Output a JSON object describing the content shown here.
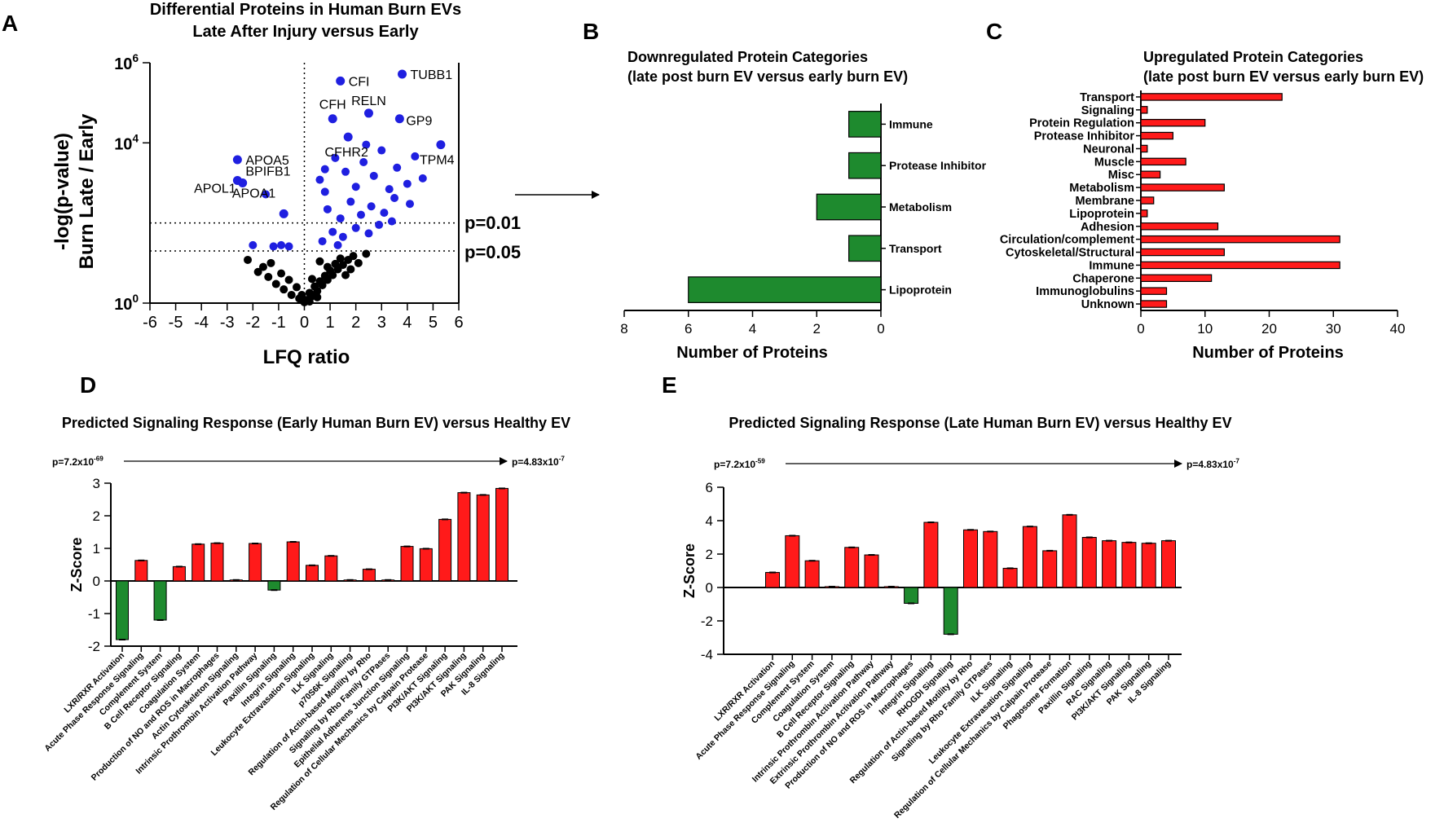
{
  "colors": {
    "up": "#ff1a1a",
    "down": "#1e8a2e",
    "sig": "#1f1fe0",
    "nonsig": "#000000",
    "axis": "#000000"
  },
  "panel_letters": [
    "A",
    "B",
    "C",
    "D",
    "E"
  ],
  "flow_arrow_name": "right-arrow-icon",
  "chart_data": [
    {
      "id": "A",
      "type": "scatter",
      "title_line1": "Differential Proteins in Human Burn EVs",
      "title_line2": "Late After Injury versus Early",
      "xlabel": "LFQ ratio",
      "ylabel_line1": "-log(p-value)",
      "ylabel_line2": "Burn Late / Early",
      "yscale": "log10",
      "xlim": [
        -6,
        6
      ],
      "ylim": [
        1,
        1000000
      ],
      "xticks": [
        "-6",
        "-5",
        "-4",
        "-3",
        "-2",
        "-1",
        "0",
        "1",
        "2",
        "3",
        "4",
        "5",
        "6"
      ],
      "yticks": [
        {
          "base": "10",
          "exp": "0",
          "value": 1
        },
        {
          "base": "10",
          "exp": "4",
          "value": 10000
        },
        {
          "base": "10",
          "exp": "6",
          "value": 1000000
        }
      ],
      "threshold_labels": [
        "p=0.01",
        "p=0.05"
      ],
      "threshold_values": [
        100,
        20
      ],
      "labeled_points": [
        {
          "label": "TUBB1",
          "x": 3.8,
          "y": 520000
        },
        {
          "label": "CFI",
          "x": 1.4,
          "y": 350000
        },
        {
          "label": "RELN",
          "x": 2.5,
          "y": 55000
        },
        {
          "label": "GP9",
          "x": 3.7,
          "y": 40000
        },
        {
          "label": "CFH",
          "x": 1.1,
          "y": 40000
        },
        {
          "label": "CFHR2",
          "x": 1.7,
          "y": 14000
        },
        {
          "label": "TPM4",
          "x": 5.3,
          "y": 9000
        },
        {
          "label": "APOA5",
          "x": -2.6,
          "y": 3800
        },
        {
          "label": "BPIFB1",
          "x": -2.6,
          "y": 1150
        },
        {
          "label": "APOL1",
          "x": -2.4,
          "y": 1000
        },
        {
          "label": "APOA1",
          "x": -0.8,
          "y": 170
        }
      ],
      "extra_sig_points": [
        {
          "x": -2.0,
          "y": 28
        },
        {
          "x": -1.2,
          "y": 26
        },
        {
          "x": -0.9,
          "y": 28
        },
        {
          "x": -0.6,
          "y": 26
        },
        {
          "x": -1.5,
          "y": 520
        },
        {
          "x": 0.6,
          "y": 1200
        },
        {
          "x": 0.8,
          "y": 2200
        },
        {
          "x": 1.2,
          "y": 4200
        },
        {
          "x": 1.6,
          "y": 1900
        },
        {
          "x": 2.0,
          "y": 800
        },
        {
          "x": 2.3,
          "y": 3300
        },
        {
          "x": 2.7,
          "y": 1500
        },
        {
          "x": 3.0,
          "y": 6500
        },
        {
          "x": 3.3,
          "y": 700
        },
        {
          "x": 3.6,
          "y": 2400
        },
        {
          "x": 4.0,
          "y": 950
        },
        {
          "x": 4.3,
          "y": 4600
        },
        {
          "x": 4.6,
          "y": 1300
        },
        {
          "x": 0.9,
          "y": 220
        },
        {
          "x": 1.4,
          "y": 130
        },
        {
          "x": 1.8,
          "y": 340
        },
        {
          "x": 2.2,
          "y": 160
        },
        {
          "x": 2.6,
          "y": 260
        },
        {
          "x": 3.1,
          "y": 180
        },
        {
          "x": 3.5,
          "y": 420
        },
        {
          "x": 1.1,
          "y": 60
        },
        {
          "x": 1.5,
          "y": 45
        },
        {
          "x": 2.0,
          "y": 75
        },
        {
          "x": 2.5,
          "y": 55
        },
        {
          "x": 2.9,
          "y": 90
        },
        {
          "x": 0.7,
          "y": 35
        },
        {
          "x": 1.3,
          "y": 28
        },
        {
          "x": 3.4,
          "y": 110
        },
        {
          "x": 4.1,
          "y": 300
        },
        {
          "x": 0.8,
          "y": 600
        },
        {
          "x": 2.4,
          "y": 9000
        }
      ],
      "nonsig_points": [
        {
          "x": -2.2,
          "y": 12
        },
        {
          "x": -1.8,
          "y": 6
        },
        {
          "x": -1.4,
          "y": 4.5
        },
        {
          "x": -1.1,
          "y": 3
        },
        {
          "x": -0.8,
          "y": 2.2
        },
        {
          "x": -0.5,
          "y": 1.6
        },
        {
          "x": -0.2,
          "y": 1.3
        },
        {
          "x": 0.1,
          "y": 1.2
        },
        {
          "x": 0.3,
          "y": 1.5
        },
        {
          "x": 0.5,
          "y": 2
        },
        {
          "x": 0.7,
          "y": 2.8
        },
        {
          "x": 0.9,
          "y": 3.8
        },
        {
          "x": 1.1,
          "y": 5
        },
        {
          "x": 1.3,
          "y": 7
        },
        {
          "x": 1.5,
          "y": 9
        },
        {
          "x": 1.7,
          "y": 12
        },
        {
          "x": 1.9,
          "y": 15
        },
        {
          "x": 0.2,
          "y": 1.8
        },
        {
          "x": 0.4,
          "y": 2.6
        },
        {
          "x": 0.6,
          "y": 3.5
        },
        {
          "x": 0.8,
          "y": 4.8
        },
        {
          "x": 1.0,
          "y": 6.5
        },
        {
          "x": 1.2,
          "y": 9.5
        },
        {
          "x": 1.4,
          "y": 13
        },
        {
          "x": -0.3,
          "y": 2.5
        },
        {
          "x": -0.6,
          "y": 3.8
        },
        {
          "x": -0.9,
          "y": 5.5
        },
        {
          "x": -1.6,
          "y": 8
        },
        {
          "x": 0.0,
          "y": 1.05
        },
        {
          "x": 0.2,
          "y": 1.1
        },
        {
          "x": -0.1,
          "y": 1.6
        },
        {
          "x": 0.5,
          "y": 1.4
        },
        {
          "x": 1.6,
          "y": 5
        },
        {
          "x": 2.1,
          "y": 10
        },
        {
          "x": 2.4,
          "y": 17
        },
        {
          "x": 0.3,
          "y": 4
        },
        {
          "x": 0.9,
          "y": 8
        },
        {
          "x": -1.3,
          "y": 10
        },
        {
          "x": 0.6,
          "y": 11
        },
        {
          "x": 1.8,
          "y": 7
        }
      ]
    },
    {
      "id": "B",
      "type": "bar",
      "orientation": "horizontal",
      "x_direction": "reversed",
      "title_line1": "Downregulated Protein Categories",
      "title_line2": "(late post burn EV versus early burn EV)",
      "xlabel": "Number of Proteins",
      "xlim": [
        0,
        8
      ],
      "xticks": [
        "0",
        "2",
        "4",
        "6",
        "8"
      ],
      "categories": [
        "Immune",
        "Protease Inhibitor",
        "Metabolism",
        "Transport",
        "Lipoprotein"
      ],
      "values": [
        1,
        1,
        2,
        1,
        6
      ]
    },
    {
      "id": "C",
      "type": "bar",
      "orientation": "horizontal",
      "title_line1": "Upregulated Protein Categories",
      "title_line2": "(late post burn EV versus early burn EV)",
      "xlabel": "Number of Proteins",
      "xlim": [
        0,
        40
      ],
      "xticks": [
        "0",
        "10",
        "20",
        "30",
        "40"
      ],
      "categories": [
        "Transport",
        "Signaling",
        "Protein Regulation",
        "Protease Inhibitor",
        "Neuronal",
        "Muscle",
        "Misc",
        "Metabolism",
        "Membrane",
        "Lipoprotein",
        "Adhesion",
        "Circulation/complement",
        "Cytoskeletal/Structural",
        "Immune",
        "Chaperone",
        "Immunoglobulins",
        "Unknown"
      ],
      "values": [
        22,
        1,
        10,
        5,
        1,
        7,
        3,
        13,
        2,
        1,
        12,
        31,
        13,
        31,
        11,
        4,
        4
      ]
    },
    {
      "id": "D",
      "type": "bar",
      "title": "Predicted Signaling Response (Early Human Burn EV) versus Healthy EV",
      "pval_left": {
        "base": "p=7.2x10",
        "exp": "-69"
      },
      "pval_right": {
        "base": "p=4.83x10",
        "exp": "-7"
      },
      "ylabel": "Z-Score",
      "ylim": [
        -2,
        3
      ],
      "yticks": [
        "-2",
        "-1",
        "0",
        "1",
        "2",
        "3"
      ],
      "categories": [
        "LXR/RXR Activation",
        "Acute Phase Response Signaling",
        "Complement System",
        "B Cell Receptor Signaling",
        "Coagulation System",
        "Production of NO and ROS in Macrophages",
        "Actin Cytoskeleton Signaling",
        "Intrinsic Prothrombin Activation Pathway",
        "Paxillin Signaling",
        "Integrin Signaling",
        "Leukocyte Extravasation Signaling",
        "ILK Signaling",
        "p70S6K Signaling",
        "Regulation of Actin-based Motility by Rho",
        "Signaling by Rho Family GTPases",
        "Epithelial Adherens Junction Signaling",
        "Regulation of Cellular Mechanics by Calpain Protease",
        "PI3K/AKT Signaling",
        "PI3K/AKT Signaling",
        "PAK Signaling",
        "IL-8 Signaling"
      ],
      "values": [
        -1.8,
        0.63,
        -1.2,
        0.44,
        1.13,
        1.16,
        0.03,
        1.15,
        -0.28,
        1.2,
        0.48,
        0.77,
        0.03,
        0.36,
        0.03,
        1.06,
        0.99,
        1.89,
        2.71,
        2.64,
        2.84
      ]
    },
    {
      "id": "E",
      "type": "bar",
      "title": "Predicted Signaling Response (Late Human Burn EV) versus Healthy EV",
      "pval_left": {
        "base": "p=7.2x10",
        "exp": "-59"
      },
      "pval_right": {
        "base": "p=4.83x10",
        "exp": "-7"
      },
      "ylabel": "Z-Score",
      "ylim": [
        -4,
        6
      ],
      "yticks": [
        "-4",
        "-2",
        "0",
        "2",
        "4",
        "6"
      ],
      "categories": [
        "LXR/RXR Activation",
        "Acute Phase Response Signaling",
        "Complement System",
        "Coagulation System",
        "B Cell Receptor Signaling",
        "Intrinsic Prothrombin Activation Pathway",
        "Extrinsic Prothrombin Activation Pathway",
        "Production of NO and ROS in Macrophages",
        "Integrin Signaling",
        "RHOGDI Signaling",
        "Regulation of Actin-based Motility by Rho",
        "Signaling by Rho Family GTPases",
        "ILK Signaling",
        "Leukocyte Extravasation Signaling",
        "Regulation of Cellular Mechanics by Calpain Protease",
        "Phagosome Formation",
        "Paxillin Signaling",
        "RAC Signaling",
        "PI3K/AKT Signaling",
        "PAK Signaling",
        "IL-8 Signaling"
      ],
      "values": [
        0.9,
        3.1,
        1.6,
        0.05,
        2.4,
        1.95,
        0.05,
        -0.95,
        3.9,
        -2.8,
        3.45,
        3.35,
        1.15,
        3.65,
        2.2,
        4.35,
        3.0,
        2.8,
        2.7,
        2.65,
        2.8
      ]
    }
  ]
}
